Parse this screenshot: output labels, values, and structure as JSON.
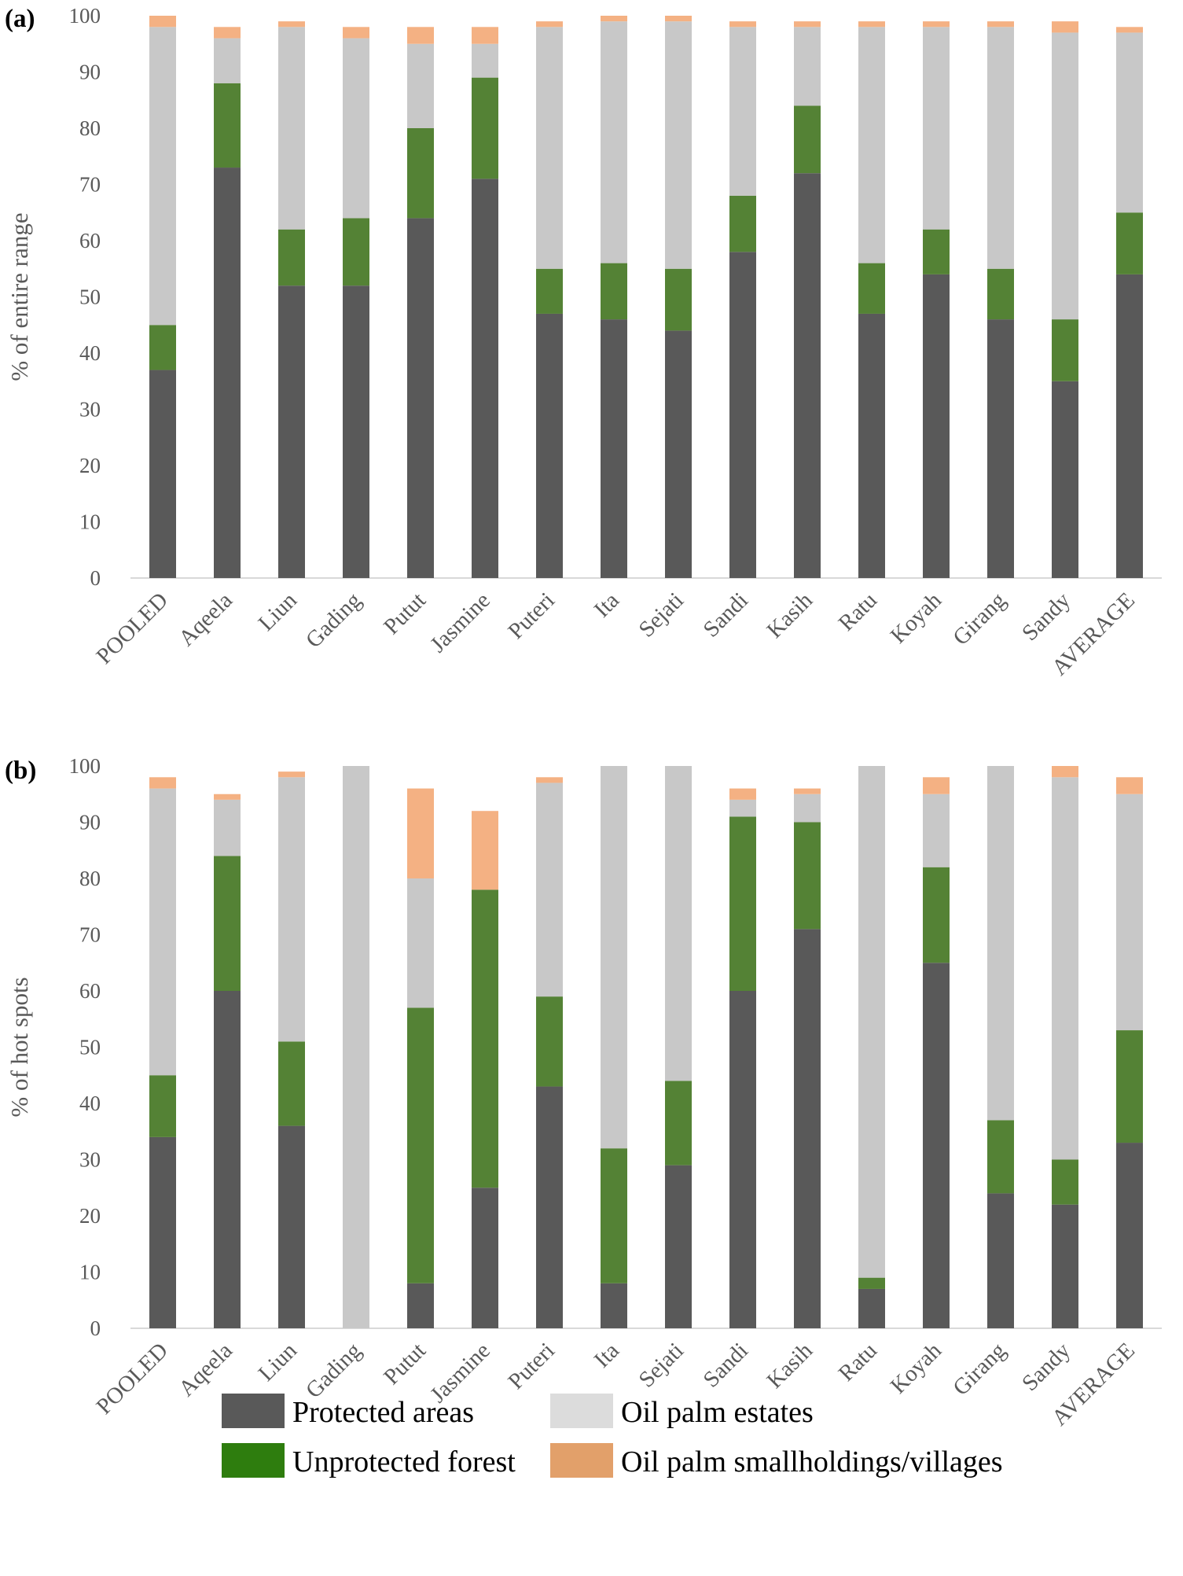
{
  "colors": {
    "Protected areas": "#595959",
    "Unprotected forest": "#548235",
    "Oil palm estates": "#c8c8c8",
    "Oil palm smallholdings/villages": "#f4b183",
    "axis_text": "#595959"
  },
  "legend_swatches": {
    "Protected areas": "#595959",
    "Unprotected forest": "#2e7d0e",
    "Oil palm estates": "#dcdcdc",
    "Oil palm smallholdings/villages": "#e2a06a"
  },
  "legend": {
    "items": [
      "Protected areas",
      "Oil palm estates",
      "Unprotected forest",
      "Oil palm smallholdings/villages"
    ]
  },
  "chart_data": [
    {
      "type": "bar",
      "stacked": true,
      "panel_label": "(a)",
      "ylabel": "% of entire range",
      "ylim": [
        0,
        100
      ],
      "yticks": [
        0,
        10,
        20,
        30,
        40,
        50,
        60,
        70,
        80,
        90,
        100
      ],
      "categories": [
        "POOLED",
        "Aqeela",
        "Liun",
        "Gading",
        "Putut",
        "Jasmine",
        "Puteri",
        "Ita",
        "Sejati",
        "Sandi",
        "Kasih",
        "Ratu",
        "Koyah",
        "Girang",
        "Sandy",
        "AVERAGE"
      ],
      "series": [
        {
          "name": "Protected areas",
          "values": [
            37,
            73,
            52,
            52,
            64,
            71,
            47,
            46,
            44,
            58,
            72,
            47,
            54,
            46,
            35,
            54
          ]
        },
        {
          "name": "Unprotected forest",
          "values": [
            8,
            15,
            10,
            12,
            16,
            18,
            8,
            10,
            11,
            10,
            12,
            9,
            8,
            9,
            11,
            11
          ]
        },
        {
          "name": "Oil palm estates",
          "values": [
            53,
            8,
            36,
            32,
            15,
            6,
            43,
            43,
            44,
            30,
            14,
            42,
            36,
            43,
            51,
            32
          ]
        },
        {
          "name": "Oil palm smallholdings/villages",
          "values": [
            2,
            2,
            1,
            2,
            3,
            3,
            1,
            1,
            1,
            1,
            1,
            1,
            1,
            1,
            2,
            1
          ]
        }
      ]
    },
    {
      "type": "bar",
      "stacked": true,
      "panel_label": "(b)",
      "ylabel": "% of hot spots",
      "ylim": [
        0,
        100
      ],
      "yticks": [
        0,
        10,
        20,
        30,
        40,
        50,
        60,
        70,
        80,
        90,
        100
      ],
      "categories": [
        "POOLED",
        "Aqeela",
        "Liun",
        "Gading",
        "Putut",
        "Jasmine",
        "Puteri",
        "Ita",
        "Sejati",
        "Sandi",
        "Kasih",
        "Ratu",
        "Koyah",
        "Girang",
        "Sandy",
        "AVERAGE"
      ],
      "series": [
        {
          "name": "Protected areas",
          "values": [
            34,
            60,
            36,
            0,
            8,
            25,
            43,
            8,
            29,
            60,
            71,
            7,
            65,
            24,
            22,
            33
          ]
        },
        {
          "name": "Unprotected forest",
          "values": [
            11,
            24,
            15,
            0,
            49,
            53,
            16,
            24,
            15,
            31,
            19,
            2,
            17,
            13,
            8,
            20
          ]
        },
        {
          "name": "Oil palm estates",
          "values": [
            51,
            10,
            47,
            100,
            23,
            0,
            38,
            68,
            56,
            3,
            5,
            91,
            13,
            63,
            68,
            42
          ]
        },
        {
          "name": "Oil palm smallholdings/villages",
          "values": [
            2,
            1,
            1,
            0,
            16,
            14,
            1,
            0,
            0,
            2,
            1,
            0,
            3,
            0,
            2,
            3
          ]
        }
      ]
    }
  ]
}
